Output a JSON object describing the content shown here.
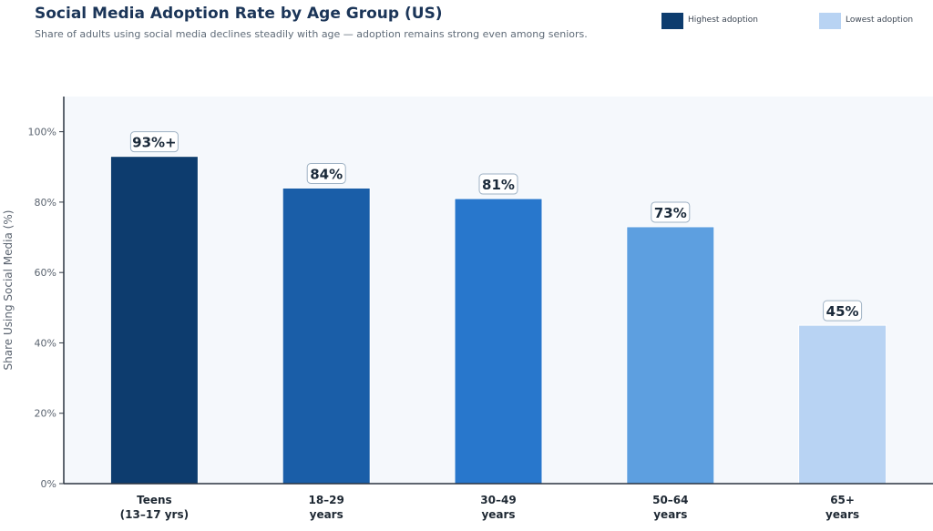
{
  "chart_data": {
    "type": "bar",
    "title": "Social Media Adoption Rate by Age Group (US)",
    "subtitle": "Share of adults using social media declines steadily with age — adoption remains strong even among seniors.",
    "xlabel": "",
    "ylabel": "Share Using Social Media (%)",
    "ylim": [
      0,
      110
    ],
    "yticks": [
      0,
      20,
      40,
      60,
      80,
      100
    ],
    "ytick_labels": [
      "0%",
      "20%",
      "40%",
      "60%",
      "80%",
      "100%"
    ],
    "categories": [
      [
        "Teens",
        "(13–17 yrs)"
      ],
      [
        "18–29",
        "years"
      ],
      [
        "30–49",
        "years"
      ],
      [
        "50–64",
        "years"
      ],
      [
        "65+",
        "years"
      ]
    ],
    "values": [
      93,
      84,
      81,
      73,
      45
    ],
    "data_labels": [
      "93%+",
      "84%",
      "81%",
      "73%",
      "45%"
    ],
    "bar_colors": [
      "#0d3c6e",
      "#1a5ea8",
      "#2877cc",
      "#5d9fe0",
      "#b8d3f3"
    ],
    "plot_background": "#f5f8fc",
    "grid": false,
    "legend": {
      "placement": "top-right",
      "entries": [
        {
          "label": "Highest adoption",
          "color": "#0d3c6e"
        },
        {
          "label": "Lowest adoption",
          "color": "#b8d3f3"
        }
      ]
    }
  }
}
